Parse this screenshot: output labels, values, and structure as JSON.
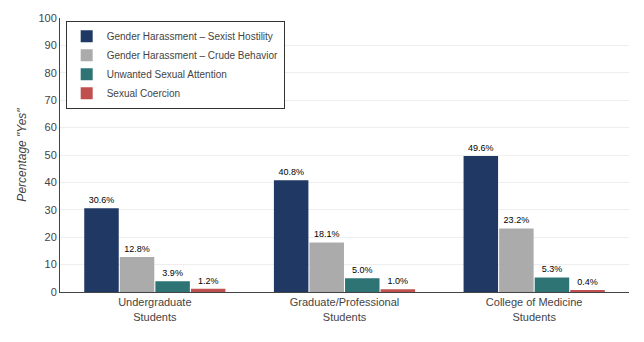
{
  "chart_data": {
    "type": "bar",
    "categories": [
      "Undergraduate\nStudents",
      "Graduate/Professional\nStudents",
      "College of Medicine\nStudents"
    ],
    "series": [
      {
        "name": "Gender Harassment – Sexist Hostility",
        "color": "#1F3864",
        "values": [
          30.6,
          40.8,
          49.6
        ],
        "value_labels": [
          "30.6%",
          "40.8%",
          "49.6%"
        ]
      },
      {
        "name": "Gender Harassment – Crude Behavior",
        "color": "#ABABAB",
        "values": [
          12.8,
          18.1,
          23.2
        ],
        "value_labels": [
          "12.8%",
          "18.1%",
          "23.2%"
        ]
      },
      {
        "name": "Unwanted Sexual Attention",
        "color": "#2E7474",
        "values": [
          3.9,
          5.0,
          5.3
        ],
        "value_labels": [
          "3.9%",
          "5.0%",
          "5.3%"
        ]
      },
      {
        "name": "Sexual Coercion",
        "color": "#C0504D",
        "values": [
          1.2,
          1.0,
          0.4
        ],
        "value_labels": [
          "1.2%",
          "1.0%",
          "0.4%"
        ]
      }
    ],
    "ylabel": "Percentage \"Yes\"",
    "ylim": [
      0,
      100
    ],
    "yticks": [
      0,
      10,
      20,
      30,
      40,
      50,
      60,
      70,
      80,
      90,
      100
    ],
    "grid": true,
    "legend": "upper left",
    "data_labels": true
  }
}
